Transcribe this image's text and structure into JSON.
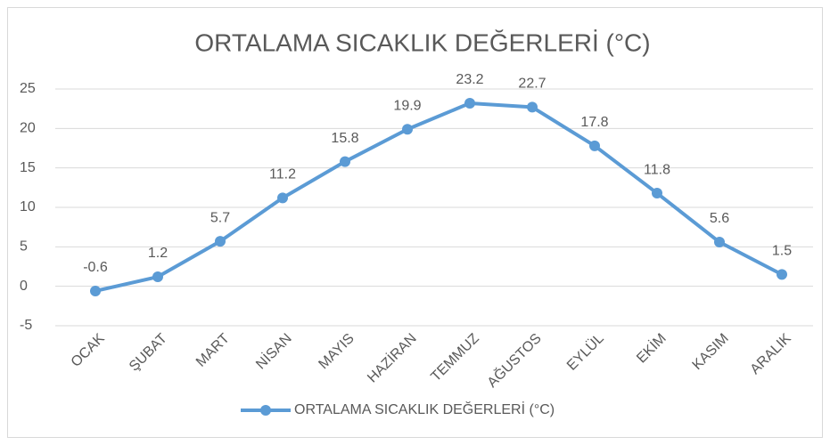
{
  "chart_data": {
    "type": "line",
    "title": "ORTALAMA SICAKLIK DEĞERLERİ (°C)",
    "categories": [
      "OCAK",
      "ŞUBAT",
      "MART",
      "NİSAN",
      "MAYIS",
      "HAZİRAN",
      "TEMMUZ",
      "AĞUSTOS",
      "EYLÜL",
      "EKİM",
      "KASIM",
      "ARALIK"
    ],
    "series": [
      {
        "name": "ORTALAMA SICAKLIK DEĞERLERİ (°C)",
        "color": "#5b9bd5",
        "values": [
          -0.6,
          1.2,
          5.7,
          11.2,
          15.8,
          19.9,
          23.2,
          22.7,
          17.8,
          11.8,
          5.6,
          1.5
        ]
      }
    ],
    "ylim": [
      -5,
      25
    ],
    "yticks": [
      -5,
      0,
      5,
      10,
      15,
      20,
      25
    ],
    "grid": true,
    "legend": "bottom"
  }
}
